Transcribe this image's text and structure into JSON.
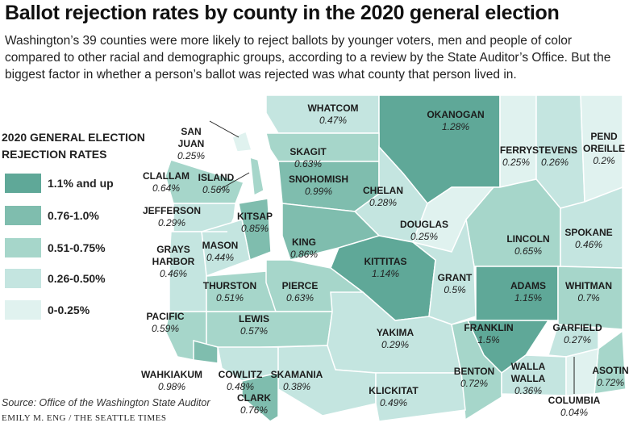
{
  "title": "Ballot rejection rates by county in the 2020 general election",
  "intro": "Washington’s 39 counties were more likely to reject ballots by younger voters, men and people of color compared to other racial and demographic groups, according to a review by the State Auditor’s Office. But the biggest factor in whether a person’s ballot was rejected was what county that person lived in.",
  "legend": {
    "title_line1": "2020 GENERAL ELECTION",
    "title_line2": "REJECTION RATES",
    "items": [
      {
        "label": "1.1% and up",
        "color": "#5fa898"
      },
      {
        "label": "0.76-1.0%",
        "color": "#7fbdae"
      },
      {
        "label": "0.51-0.75%",
        "color": "#a6d6ca"
      },
      {
        "label": "0.26-0.50%",
        "color": "#c4e5e0"
      },
      {
        "label": "0-0.25%",
        "color": "#e0f2ef"
      }
    ]
  },
  "counties": [
    {
      "id": "whatcom",
      "name": "WHATCOM",
      "rate": "0.47%",
      "bucket": 3
    },
    {
      "id": "okanogan",
      "name": "OKANOGAN",
      "rate": "1.28%",
      "bucket": 0
    },
    {
      "id": "ferry",
      "name": "FERRY",
      "rate": "0.25%",
      "bucket": 4
    },
    {
      "id": "stevens",
      "name": "STEVENS",
      "rate": "0.26%",
      "bucket": 3
    },
    {
      "id": "pendoreille",
      "name": "PEND OREILLE",
      "rate": "0.2%",
      "bucket": 4
    },
    {
      "id": "sanjuan",
      "name": "SAN JUAN",
      "rate": "0.25%",
      "bucket": 4
    },
    {
      "id": "skagit",
      "name": "SKAGIT",
      "rate": "0.63%",
      "bucket": 2
    },
    {
      "id": "island",
      "name": "ISLAND",
      "rate": "0.56%",
      "bucket": 2
    },
    {
      "id": "clallam",
      "name": "CLALLAM",
      "rate": "0.64%",
      "bucket": 2
    },
    {
      "id": "snohomish",
      "name": "SNOHOMISH",
      "rate": "0.99%",
      "bucket": 1
    },
    {
      "id": "chelan",
      "name": "CHELAN",
      "rate": "0.28%",
      "bucket": 3
    },
    {
      "id": "jefferson",
      "name": "JEFFERSON",
      "rate": "0.29%",
      "bucket": 3
    },
    {
      "id": "kitsap",
      "name": "KITSAP",
      "rate": "0.85%",
      "bucket": 1
    },
    {
      "id": "douglas",
      "name": "DOUGLAS",
      "rate": "0.25%",
      "bucket": 4
    },
    {
      "id": "lincoln",
      "name": "LINCOLN",
      "rate": "0.65%",
      "bucket": 2
    },
    {
      "id": "spokane",
      "name": "SPOKANE",
      "rate": "0.46%",
      "bucket": 3
    },
    {
      "id": "mason",
      "name": "MASON",
      "rate": "0.44%",
      "bucket": 3
    },
    {
      "id": "king",
      "name": "KING",
      "rate": "0.86%",
      "bucket": 1
    },
    {
      "id": "graysharbor",
      "name": "GRAYS HARBOR",
      "rate": "0.46%",
      "bucket": 3
    },
    {
      "id": "kittitas",
      "name": "KITTITAS",
      "rate": "1.14%",
      "bucket": 0
    },
    {
      "id": "grant",
      "name": "GRANT",
      "rate": "0.5%",
      "bucket": 3
    },
    {
      "id": "adams",
      "name": "ADAMS",
      "rate": "1.15%",
      "bucket": 0
    },
    {
      "id": "whitman",
      "name": "WHITMAN",
      "rate": "0.7%",
      "bucket": 2
    },
    {
      "id": "thurston",
      "name": "THURSTON",
      "rate": "0.51%",
      "bucket": 2
    },
    {
      "id": "pierce",
      "name": "PIERCE",
      "rate": "0.63%",
      "bucket": 2
    },
    {
      "id": "pacific",
      "name": "PACIFIC",
      "rate": "0.59%",
      "bucket": 2
    },
    {
      "id": "lewis",
      "name": "LEWIS",
      "rate": "0.57%",
      "bucket": 2
    },
    {
      "id": "yakima",
      "name": "YAKIMA",
      "rate": "0.29%",
      "bucket": 3
    },
    {
      "id": "franklin",
      "name": "FRANKLIN",
      "rate": "1.5%",
      "bucket": 0
    },
    {
      "id": "garfield",
      "name": "GARFIELD",
      "rate": "0.27%",
      "bucket": 3
    },
    {
      "id": "wahkiakum",
      "name": "WAHKIAKUM",
      "rate": "0.98%",
      "bucket": 1
    },
    {
      "id": "cowlitz",
      "name": "COWLITZ",
      "rate": "0.48%",
      "bucket": 3
    },
    {
      "id": "skamania",
      "name": "SKAMANIA",
      "rate": "0.38%",
      "bucket": 3
    },
    {
      "id": "benton",
      "name": "BENTON",
      "rate": "0.72%",
      "bucket": 2
    },
    {
      "id": "wallawalla",
      "name": "WALLA WALLA",
      "rate": "0.36%",
      "bucket": 3
    },
    {
      "id": "asotin",
      "name": "ASOTIN",
      "rate": "0.72%",
      "bucket": 2
    },
    {
      "id": "klickitat",
      "name": "KLICKITAT",
      "rate": "0.49%",
      "bucket": 3
    },
    {
      "id": "clark",
      "name": "CLARK",
      "rate": "0.76%",
      "bucket": 1
    },
    {
      "id": "columbia",
      "name": "COLUMBIA",
      "rate": "0.04%",
      "bucket": 4
    }
  ],
  "source": "Source: Office of the Washington State Auditor",
  "credit": "EMILY M. ENG / THE SEATTLE TIMES"
}
